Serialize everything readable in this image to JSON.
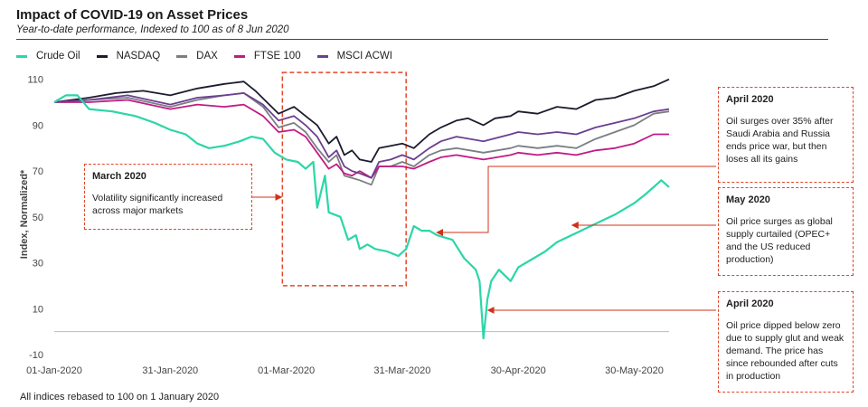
{
  "header": {
    "title": "Impact of COVID-19 on Asset Prices",
    "subtitle": "Year-to-date performance, Indexed to 100 as of 8 Jun 2020"
  },
  "footer": "All indices rebased to 100 on 1 January  2020",
  "annotations": [
    {
      "title": "March 2020",
      "text": "Volatility significantly increased across major markets"
    },
    {
      "title": "April 2020",
      "text": "Oil surges over 35%  after Saudi Arabia and Russia ends price war, but then loses all its gains"
    },
    {
      "title": "May 2020",
      "text": "Oil price surges as global supply curtailed (OPEC+ and the US reduced production)"
    },
    {
      "title": "April 2020",
      "text": "Oil price dipped below zero due to supply glut and weak demand. The price has since rebounded after cuts in production"
    }
  ],
  "chart_data": {
    "type": "line",
    "title": "Impact of COVID-19 on Asset Prices",
    "subtitle": "Year-to-date performance, Indexed to 100 as of 8 Jun 2020",
    "ylabel": "Index, Normalized*",
    "xlabel": "",
    "ylim": [
      -10,
      115
    ],
    "yticks": [
      "110",
      "90",
      "70",
      "50",
      "30",
      "10",
      "-10"
    ],
    "yticks_values": [
      110,
      90,
      70,
      50,
      30,
      10,
      -10
    ],
    "xticks": [
      "01-Jan-2020",
      "31-Jan-2020",
      "01-Mar-2020",
      "31-Mar-2020",
      "30-Apr-2020",
      "30-May-2020"
    ],
    "xticks_dates": [
      "2020-01-01",
      "2020-01-31",
      "2020-03-01",
      "2020-03-31",
      "2020-04-30",
      "2020-05-30"
    ],
    "grid": false,
    "legend": "top-left",
    "series": [
      {
        "name": "Crude Oil",
        "color": "#2bd6a7",
        "points": [
          [
            "2020-01-01",
            100
          ],
          [
            "2020-01-04",
            103
          ],
          [
            "2020-01-07",
            103
          ],
          [
            "2020-01-10",
            97
          ],
          [
            "2020-01-16",
            96
          ],
          [
            "2020-01-22",
            94
          ],
          [
            "2020-01-27",
            91
          ],
          [
            "2020-01-31",
            88
          ],
          [
            "2020-02-04",
            86
          ],
          [
            "2020-02-07",
            82
          ],
          [
            "2020-02-10",
            80
          ],
          [
            "2020-02-14",
            81
          ],
          [
            "2020-02-18",
            83
          ],
          [
            "2020-02-21",
            85
          ],
          [
            "2020-02-24",
            84
          ],
          [
            "2020-02-27",
            78
          ],
          [
            "2020-03-01",
            75
          ],
          [
            "2020-03-04",
            74
          ],
          [
            "2020-03-06",
            71
          ],
          [
            "2020-03-08",
            74
          ],
          [
            "2020-03-09",
            54
          ],
          [
            "2020-03-11",
            68
          ],
          [
            "2020-03-12",
            52
          ],
          [
            "2020-03-15",
            50
          ],
          [
            "2020-03-17",
            40
          ],
          [
            "2020-03-19",
            42
          ],
          [
            "2020-03-20",
            36
          ],
          [
            "2020-03-22",
            38
          ],
          [
            "2020-03-24",
            36
          ],
          [
            "2020-03-27",
            35
          ],
          [
            "2020-03-30",
            33
          ],
          [
            "2020-04-01",
            36
          ],
          [
            "2020-04-03",
            46
          ],
          [
            "2020-04-05",
            44
          ],
          [
            "2020-04-07",
            44
          ],
          [
            "2020-04-09",
            42
          ],
          [
            "2020-04-13",
            40
          ],
          [
            "2020-04-16",
            32
          ],
          [
            "2020-04-19",
            27
          ],
          [
            "2020-04-20",
            22
          ],
          [
            "2020-04-21",
            -3
          ],
          [
            "2020-04-22",
            14
          ],
          [
            "2020-04-23",
            22
          ],
          [
            "2020-04-25",
            27
          ],
          [
            "2020-04-28",
            22
          ],
          [
            "2020-04-30",
            28
          ],
          [
            "2020-05-04",
            32
          ],
          [
            "2020-05-07",
            35
          ],
          [
            "2020-05-10",
            39
          ],
          [
            "2020-05-15",
            43
          ],
          [
            "2020-05-20",
            47
          ],
          [
            "2020-05-25",
            51
          ],
          [
            "2020-05-30",
            56
          ],
          [
            "2020-06-02",
            60
          ],
          [
            "2020-06-06",
            66
          ],
          [
            "2020-06-08",
            63
          ]
        ]
      },
      {
        "name": "NASDAQ",
        "color": "#1c1c2e",
        "points": [
          [
            "2020-01-01",
            100
          ],
          [
            "2020-01-10",
            102
          ],
          [
            "2020-01-17",
            104
          ],
          [
            "2020-01-24",
            105
          ],
          [
            "2020-01-31",
            103
          ],
          [
            "2020-02-07",
            106
          ],
          [
            "2020-02-14",
            108
          ],
          [
            "2020-02-19",
            109
          ],
          [
            "2020-02-22",
            105
          ],
          [
            "2020-02-25",
            100
          ],
          [
            "2020-02-28",
            95
          ],
          [
            "2020-03-03",
            98
          ],
          [
            "2020-03-06",
            94
          ],
          [
            "2020-03-09",
            90
          ],
          [
            "2020-03-12",
            82
          ],
          [
            "2020-03-14",
            85
          ],
          [
            "2020-03-16",
            77
          ],
          [
            "2020-03-18",
            79
          ],
          [
            "2020-03-20",
            75
          ],
          [
            "2020-03-23",
            74
          ],
          [
            "2020-03-25",
            80
          ],
          [
            "2020-03-28",
            81
          ],
          [
            "2020-03-31",
            82
          ],
          [
            "2020-04-03",
            80
          ],
          [
            "2020-04-07",
            86
          ],
          [
            "2020-04-10",
            89
          ],
          [
            "2020-04-14",
            92
          ],
          [
            "2020-04-17",
            93
          ],
          [
            "2020-04-21",
            90
          ],
          [
            "2020-04-24",
            93
          ],
          [
            "2020-04-28",
            94
          ],
          [
            "2020-04-30",
            96
          ],
          [
            "2020-05-05",
            95
          ],
          [
            "2020-05-10",
            98
          ],
          [
            "2020-05-15",
            97
          ],
          [
            "2020-05-20",
            101
          ],
          [
            "2020-05-25",
            102
          ],
          [
            "2020-05-30",
            105
          ],
          [
            "2020-06-04",
            107
          ],
          [
            "2020-06-08",
            110
          ]
        ]
      },
      {
        "name": "DAX",
        "color": "#7a7f84",
        "points": [
          [
            "2020-01-01",
            100
          ],
          [
            "2020-01-10",
            101
          ],
          [
            "2020-01-20",
            102
          ],
          [
            "2020-01-31",
            98
          ],
          [
            "2020-02-07",
            101
          ],
          [
            "2020-02-14",
            103
          ],
          [
            "2020-02-19",
            104
          ],
          [
            "2020-02-24",
            98
          ],
          [
            "2020-02-28",
            89
          ],
          [
            "2020-03-03",
            91
          ],
          [
            "2020-03-06",
            87
          ],
          [
            "2020-03-09",
            80
          ],
          [
            "2020-03-12",
            74
          ],
          [
            "2020-03-14",
            77
          ],
          [
            "2020-03-16",
            68
          ],
          [
            "2020-03-18",
            67
          ],
          [
            "2020-03-20",
            66
          ],
          [
            "2020-03-23",
            64
          ],
          [
            "2020-03-25",
            72
          ],
          [
            "2020-03-28",
            72
          ],
          [
            "2020-03-31",
            74
          ],
          [
            "2020-04-03",
            72
          ],
          [
            "2020-04-07",
            77
          ],
          [
            "2020-04-10",
            79
          ],
          [
            "2020-04-14",
            80
          ],
          [
            "2020-04-21",
            78
          ],
          [
            "2020-04-28",
            80
          ],
          [
            "2020-04-30",
            81
          ],
          [
            "2020-05-05",
            80
          ],
          [
            "2020-05-10",
            81
          ],
          [
            "2020-05-15",
            80
          ],
          [
            "2020-05-20",
            84
          ],
          [
            "2020-05-25",
            87
          ],
          [
            "2020-05-30",
            90
          ],
          [
            "2020-06-04",
            95
          ],
          [
            "2020-06-08",
            96
          ]
        ]
      },
      {
        "name": "FTSE 100",
        "color": "#c21b85",
        "points": [
          [
            "2020-01-01",
            100
          ],
          [
            "2020-01-10",
            100
          ],
          [
            "2020-01-20",
            101
          ],
          [
            "2020-01-31",
            97
          ],
          [
            "2020-02-07",
            99
          ],
          [
            "2020-02-14",
            98
          ],
          [
            "2020-02-19",
            99
          ],
          [
            "2020-02-24",
            94
          ],
          [
            "2020-02-28",
            87
          ],
          [
            "2020-03-03",
            88
          ],
          [
            "2020-03-06",
            85
          ],
          [
            "2020-03-09",
            78
          ],
          [
            "2020-03-12",
            71
          ],
          [
            "2020-03-14",
            73
          ],
          [
            "2020-03-16",
            69
          ],
          [
            "2020-03-18",
            68
          ],
          [
            "2020-03-20",
            70
          ],
          [
            "2020-03-23",
            67
          ],
          [
            "2020-03-25",
            72
          ],
          [
            "2020-03-28",
            72
          ],
          [
            "2020-03-31",
            72
          ],
          [
            "2020-04-03",
            71
          ],
          [
            "2020-04-07",
            74
          ],
          [
            "2020-04-10",
            76
          ],
          [
            "2020-04-14",
            77
          ],
          [
            "2020-04-21",
            75
          ],
          [
            "2020-04-28",
            77
          ],
          [
            "2020-04-30",
            78
          ],
          [
            "2020-05-05",
            77
          ],
          [
            "2020-05-10",
            78
          ],
          [
            "2020-05-15",
            77
          ],
          [
            "2020-05-20",
            79
          ],
          [
            "2020-05-25",
            80
          ],
          [
            "2020-05-30",
            82
          ],
          [
            "2020-06-04",
            86
          ],
          [
            "2020-06-08",
            86
          ]
        ]
      },
      {
        "name": "MSCI ACWI",
        "color": "#6c3f8f",
        "points": [
          [
            "2020-01-01",
            100
          ],
          [
            "2020-01-10",
            101
          ],
          [
            "2020-01-20",
            103
          ],
          [
            "2020-01-31",
            99
          ],
          [
            "2020-02-07",
            102
          ],
          [
            "2020-02-14",
            103
          ],
          [
            "2020-02-19",
            104
          ],
          [
            "2020-02-24",
            99
          ],
          [
            "2020-02-28",
            92
          ],
          [
            "2020-03-03",
            94
          ],
          [
            "2020-03-06",
            90
          ],
          [
            "2020-03-09",
            85
          ],
          [
            "2020-03-12",
            76
          ],
          [
            "2020-03-14",
            79
          ],
          [
            "2020-03-16",
            72
          ],
          [
            "2020-03-18",
            70
          ],
          [
            "2020-03-20",
            69
          ],
          [
            "2020-03-23",
            67
          ],
          [
            "2020-03-25",
            74
          ],
          [
            "2020-03-28",
            75
          ],
          [
            "2020-03-31",
            77
          ],
          [
            "2020-04-03",
            75
          ],
          [
            "2020-04-07",
            80
          ],
          [
            "2020-04-10",
            83
          ],
          [
            "2020-04-14",
            85
          ],
          [
            "2020-04-21",
            83
          ],
          [
            "2020-04-28",
            86
          ],
          [
            "2020-04-30",
            87
          ],
          [
            "2020-05-05",
            86
          ],
          [
            "2020-05-10",
            87
          ],
          [
            "2020-05-15",
            86
          ],
          [
            "2020-05-20",
            89
          ],
          [
            "2020-05-25",
            91
          ],
          [
            "2020-05-30",
            93
          ],
          [
            "2020-06-04",
            96
          ],
          [
            "2020-06-08",
            97
          ]
        ]
      }
    ]
  }
}
